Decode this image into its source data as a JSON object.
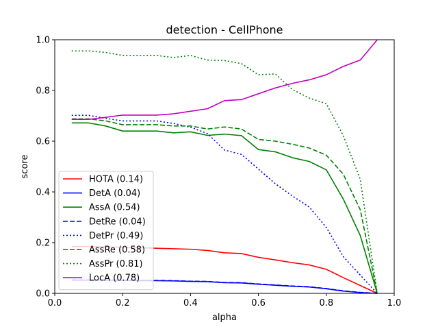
{
  "chart_data": {
    "type": "line",
    "title": "detection - CellPhone",
    "xlabel": "alpha",
    "ylabel": "score",
    "xlim": [
      0.0,
      1.0
    ],
    "ylim": [
      0.0,
      1.0
    ],
    "xticks": [
      "0.0",
      "0.2",
      "0.4",
      "0.6",
      "0.8",
      "1.0"
    ],
    "yticks": [
      "0.0",
      "0.2",
      "0.4",
      "0.6",
      "0.8",
      "1.0"
    ],
    "grid": false,
    "legend_position": "lower-left",
    "x": [
      0.05,
      0.1,
      0.15,
      0.2,
      0.25,
      0.3,
      0.35,
      0.4,
      0.45,
      0.5,
      0.55,
      0.6,
      0.65,
      0.7,
      0.75,
      0.8,
      0.85,
      0.9,
      0.95
    ],
    "series": [
      {
        "name": "HOTA (0.14)",
        "color": "#ff0000",
        "dash": "solid",
        "values": [
          0.185,
          0.185,
          0.183,
          0.182,
          0.18,
          0.178,
          0.176,
          0.174,
          0.169,
          0.16,
          0.157,
          0.142,
          0.132,
          0.121,
          0.112,
          0.095,
          0.062,
          0.031,
          0.0
        ]
      },
      {
        "name": "DetA (0.04)",
        "color": "#0000ff",
        "dash": "solid",
        "values": [
          0.052,
          0.052,
          0.052,
          0.051,
          0.05,
          0.05,
          0.049,
          0.047,
          0.046,
          0.042,
          0.041,
          0.036,
          0.032,
          0.028,
          0.025,
          0.018,
          0.009,
          0.003,
          0.0
        ]
      },
      {
        "name": "AssA (0.54)",
        "color": "#008000",
        "dash": "solid",
        "values": [
          0.672,
          0.672,
          0.66,
          0.64,
          0.64,
          0.64,
          0.633,
          0.637,
          0.623,
          0.628,
          0.622,
          0.567,
          0.558,
          0.535,
          0.52,
          0.487,
          0.372,
          0.228,
          0.0
        ]
      },
      {
        "name": "DetRe (0.04)",
        "color": "#0000ff",
        "dash": "dashed",
        "values": [
          0.053,
          0.053,
          0.053,
          0.052,
          0.051,
          0.051,
          0.05,
          0.048,
          0.047,
          0.043,
          0.042,
          0.037,
          0.033,
          0.029,
          0.026,
          0.019,
          0.01,
          0.004,
          0.0
        ]
      },
      {
        "name": "DetPr (0.49)",
        "color": "#0000ff",
        "dash": "dotted",
        "values": [
          0.702,
          0.702,
          0.69,
          0.68,
          0.68,
          0.68,
          0.67,
          0.655,
          0.63,
          0.565,
          0.548,
          0.49,
          0.432,
          0.384,
          0.34,
          0.26,
          0.145,
          0.072,
          0.0
        ]
      },
      {
        "name": "AssRe (0.58)",
        "color": "#008000",
        "dash": "dashed",
        "values": [
          0.688,
          0.688,
          0.68,
          0.665,
          0.665,
          0.665,
          0.66,
          0.66,
          0.648,
          0.656,
          0.648,
          0.607,
          0.6,
          0.588,
          0.573,
          0.545,
          0.47,
          0.33,
          0.0
        ]
      },
      {
        "name": "AssPr (0.81)",
        "color": "#008000",
        "dash": "dotted",
        "values": [
          0.956,
          0.956,
          0.95,
          0.938,
          0.938,
          0.938,
          0.93,
          0.938,
          0.92,
          0.918,
          0.906,
          0.862,
          0.865,
          0.804,
          0.77,
          0.748,
          0.622,
          0.45,
          0.0
        ]
      },
      {
        "name": "LocA (0.78)",
        "color": "#bf00bf",
        "dash": "solid",
        "values": [
          0.686,
          0.686,
          0.694,
          0.703,
          0.703,
          0.703,
          0.708,
          0.718,
          0.728,
          0.76,
          0.764,
          0.787,
          0.81,
          0.828,
          0.842,
          0.862,
          0.895,
          0.92,
          1.0
        ]
      }
    ]
  }
}
